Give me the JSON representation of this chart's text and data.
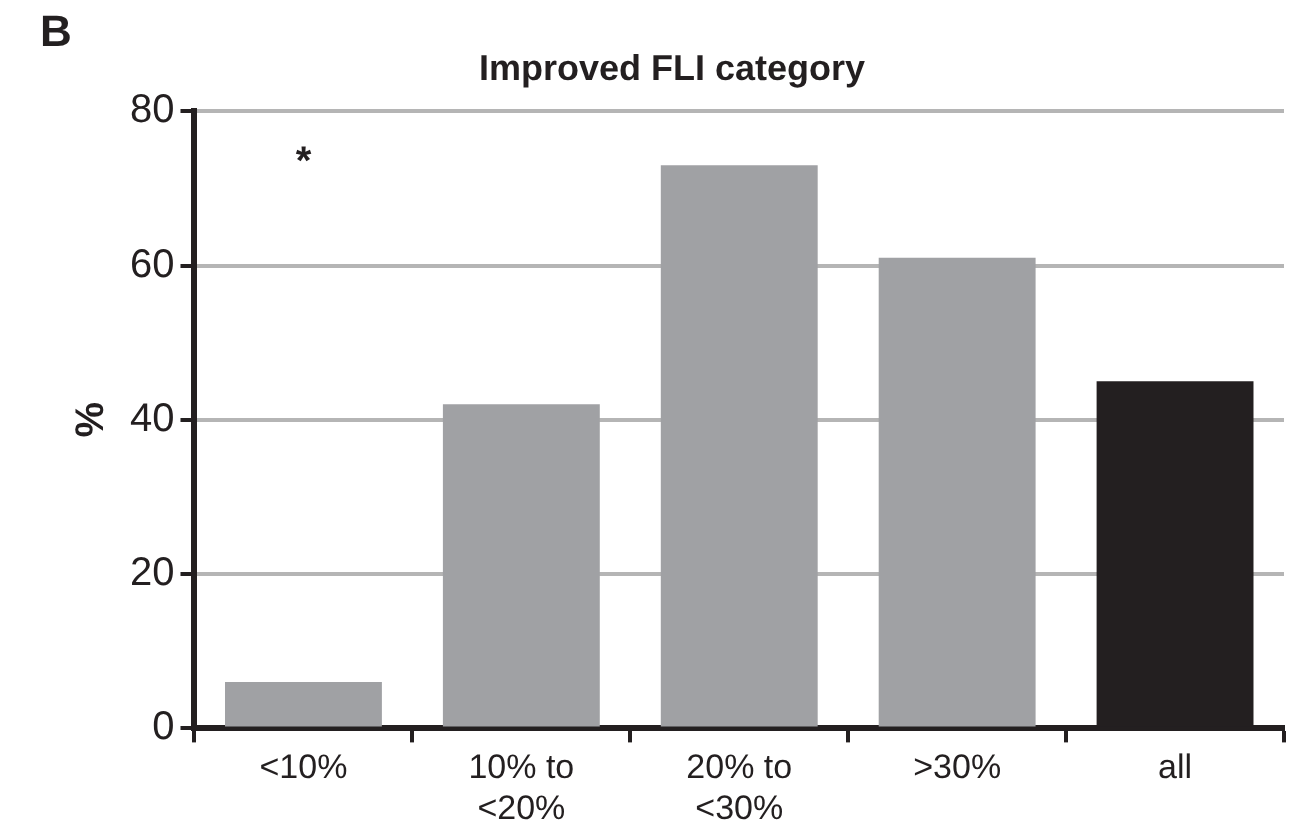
{
  "chart_data": {
    "type": "bar",
    "title": "Improved FLI category",
    "ylabel": "%",
    "categories": [
      "<10%",
      "10% to <20%",
      "20% to <30%",
      ">30%",
      "all"
    ],
    "values": [
      6,
      42,
      73,
      61,
      45
    ],
    "colors": [
      "#a0a1a4",
      "#a0a1a4",
      "#a0a1a4",
      "#a0a1a4",
      "#231f20"
    ],
    "ylim": [
      0,
      80
    ],
    "yticks": [
      0,
      20,
      40,
      60,
      80
    ],
    "grid": "y",
    "legend": false,
    "annotations": [
      "B",
      "*"
    ]
  }
}
